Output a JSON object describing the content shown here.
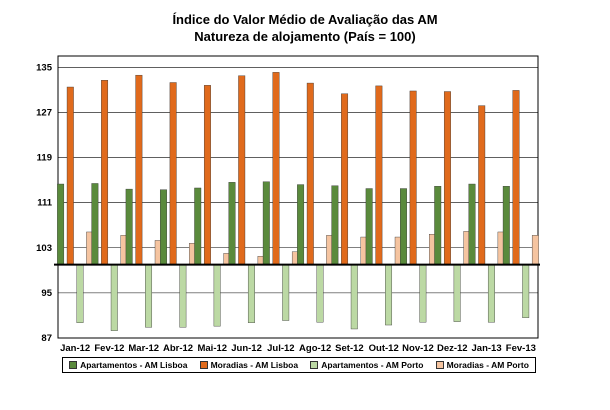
{
  "chart_data": {
    "type": "bar",
    "title": "Índice do Valor Médio de Avaliação das AM",
    "subtitle": "Natureza de alojamento (País = 100)",
    "categories": [
      "Jan-12",
      "Fev-12",
      "Mar-12",
      "Abr-12",
      "Mai-12",
      "Jun-12",
      "Jul-12",
      "Ago-12",
      "Set-12",
      "Out-12",
      "Nov-12",
      "Dez-12",
      "Jan-13",
      "Fev-13"
    ],
    "baseline": 100,
    "ylim": [
      87,
      137
    ],
    "yticks": [
      87,
      95,
      103,
      111,
      119,
      127,
      135
    ],
    "grid": true,
    "legend_position": "bottom",
    "series": [
      {
        "name": "Apartamentos - AM Lisboa",
        "color": "#5a8a3c",
        "values": [
          114.3,
          114.4,
          113.4,
          113.3,
          113.6,
          114.6,
          114.7,
          114.2,
          114.0,
          113.5,
          113.5,
          113.9,
          114.3,
          113.9
        ]
      },
      {
        "name": "Moradias - AM Lisboa",
        "color": "#e06a1c",
        "values": [
          131.5,
          132.7,
          133.6,
          132.3,
          131.8,
          133.5,
          134.1,
          132.2,
          130.3,
          131.7,
          130.8,
          130.7,
          128.2,
          130.9
        ]
      },
      {
        "name": "Apartamentos - AM Porto",
        "color": "#bcd9a4",
        "values": [
          89.7,
          88.3,
          88.9,
          88.9,
          89.1,
          89.7,
          90.1,
          89.8,
          88.6,
          89.3,
          89.8,
          89.9,
          89.8,
          90.6
        ]
      },
      {
        "name": "Moradias - AM Porto",
        "color": "#f5c4a0",
        "values": [
          105.8,
          105.2,
          104.3,
          103.8,
          102.0,
          101.5,
          102.3,
          105.2,
          104.9,
          104.9,
          105.4,
          105.9,
          105.8,
          105.2
        ]
      }
    ]
  }
}
